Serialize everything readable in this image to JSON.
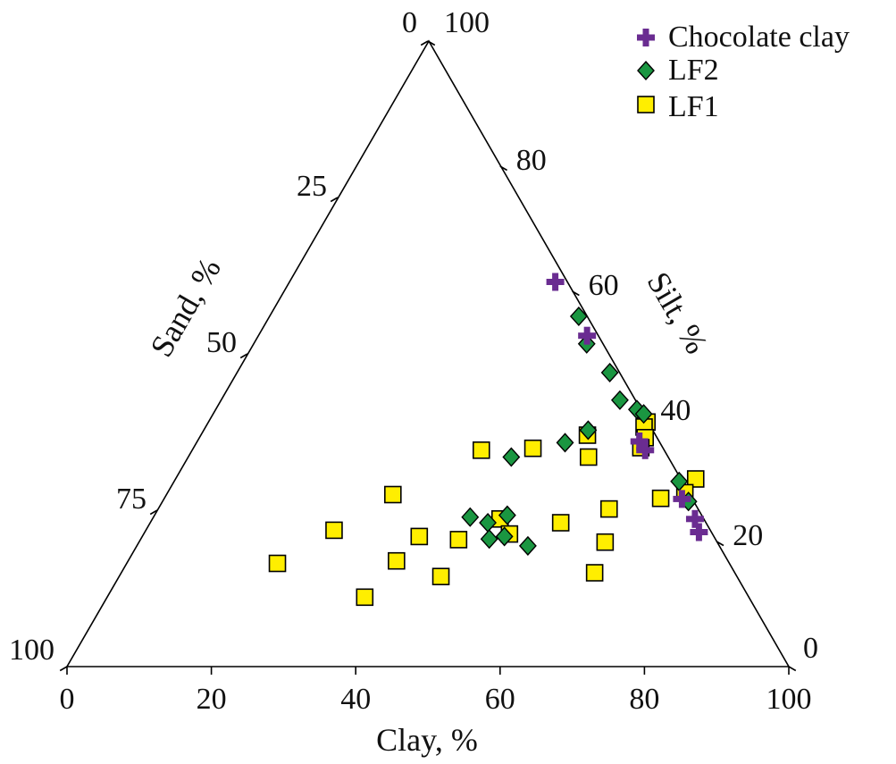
{
  "chart_data": {
    "type": "ternary-scatter",
    "axes": {
      "clay": {
        "label": "Clay, %",
        "ticks": [
          0,
          20,
          40,
          60,
          80,
          100
        ]
      },
      "silt": {
        "label": "Silt, %",
        "ticks": [
          0,
          20,
          40,
          60,
          80,
          100
        ]
      },
      "sand": {
        "label": "Sand, %",
        "ticks": [
          0,
          25,
          50,
          75,
          100
        ]
      }
    },
    "series": [
      {
        "name": "Chocolate clay",
        "marker": "plus",
        "color": "#6a2c91",
        "points": [
          {
            "clay": 36.9,
            "silt": 61.5
          },
          {
            "clay": 45.6,
            "silt": 52.9
          },
          {
            "clay": 61.3,
            "silt": 36.0
          },
          {
            "clay": 62.8,
            "silt": 34.6
          },
          {
            "clay": 71.8,
            "silt": 26.8
          },
          {
            "clay": 75.2,
            "silt": 23.6
          },
          {
            "clay": 76.8,
            "silt": 21.5
          }
        ]
      },
      {
        "name": "LF2",
        "marker": "diamond",
        "color": "#1a9641",
        "points": [
          {
            "clay": 42.9,
            "silt": 56.0
          },
          {
            "clay": 46.2,
            "silt": 51.6
          },
          {
            "clay": 51.7,
            "silt": 47.0
          },
          {
            "clay": 55.3,
            "silt": 42.6
          },
          {
            "clay": 58.4,
            "silt": 41.1
          },
          {
            "clay": 59.7,
            "silt": 40.4
          },
          {
            "clay": 53.3,
            "silt": 37.8
          },
          {
            "clay": 70.0,
            "silt": 29.6
          },
          {
            "clay": 72.9,
            "silt": 26.4
          },
          {
            "clay": 44.8,
            "silt": 33.5
          },
          {
            "clay": 51.1,
            "silt": 35.8
          },
          {
            "clay": 43.9,
            "silt": 23.9
          },
          {
            "clay": 46.8,
            "silt": 23.0
          },
          {
            "clay": 48.9,
            "silt": 24.2
          },
          {
            "clay": 50.2,
            "silt": 20.8
          },
          {
            "clay": 54.2,
            "silt": 19.3
          },
          {
            "clay": 48.3,
            "silt": 20.4
          }
        ]
      },
      {
        "name": "LF1",
        "marker": "square",
        "color": "#ffee00",
        "points": [
          {
            "clay": 31.4,
            "silt": 27.5
          },
          {
            "clay": 40.1,
            "silt": 34.6
          },
          {
            "clay": 47.1,
            "silt": 34.9
          },
          {
            "clay": 53.6,
            "silt": 37.0
          },
          {
            "clay": 55.5,
            "silt": 33.5
          },
          {
            "clay": 60.8,
            "silt": 39.1
          },
          {
            "clay": 60.8,
            "silt": 38.3
          },
          {
            "clay": 61.8,
            "silt": 36.6
          },
          {
            "clay": 62.0,
            "silt": 35.0
          },
          {
            "clay": 72.1,
            "silt": 30.0
          },
          {
            "clay": 71.7,
            "silt": 27.8
          },
          {
            "clay": 68.8,
            "silt": 26.9
          },
          {
            "clay": 48.2,
            "silt": 23.6
          },
          {
            "clay": 56.9,
            "silt": 23.0
          },
          {
            "clay": 62.5,
            "silt": 25.2
          },
          {
            "clay": 50.7,
            "silt": 21.2
          },
          {
            "clay": 64.6,
            "silt": 19.9
          },
          {
            "clay": 26.1,
            "silt": 21.8
          },
          {
            "clay": 38.4,
            "silt": 20.8
          },
          {
            "clay": 44.1,
            "silt": 20.3
          },
          {
            "clay": 37.2,
            "silt": 16.9
          },
          {
            "clay": 20.9,
            "silt": 16.5
          },
          {
            "clay": 44.6,
            "silt": 14.4
          },
          {
            "clay": 65.6,
            "silt": 15.0
          },
          {
            "clay": 35.7,
            "silt": 11.1
          }
        ]
      }
    ]
  }
}
